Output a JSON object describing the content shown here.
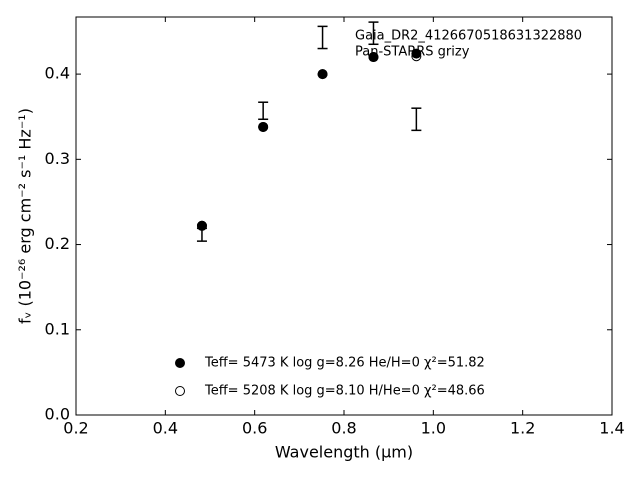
{
  "chart_data": {
    "type": "scatter",
    "xlabel": "Wavelength (μm)",
    "ylabel": "fᵥ (10⁻²⁶ erg cm⁻² s⁻¹ Hz⁻¹)",
    "annotations": [
      "Gaia_DR2_4126670518631322880",
      "Pan-STARRS grizy"
    ],
    "xlim": [
      0.2,
      1.4
    ],
    "xticks": [
      0.2,
      0.4,
      0.6,
      0.8,
      {
        "value": 1,
        "label": "1.0"
      },
      1.2,
      1.4
    ],
    "ylim": [
      0,
      0.467
    ],
    "yticks": [
      {
        "value": 0,
        "label": "0.0"
      },
      0.1,
      0.2,
      0.3,
      0.4
    ],
    "observed": {
      "x": [
        0.482,
        0.619,
        0.752,
        0.866,
        0.962
      ],
      "values": [
        0.2115,
        0.357,
        0.443,
        0.448,
        0.347
      ],
      "errors": [
        0.0075,
        0.01,
        0.013,
        0.013,
        0.013
      ],
      "color": "#000000"
    },
    "series": [
      {
        "name": "Teff=  5473 K  log g=8.26  He/H=0  χ²=51.82",
        "marker": "filled",
        "color": "#000000",
        "x": [
          0.482,
          0.619,
          0.752,
          0.866,
          0.962
        ],
        "values": [
          0.222,
          0.338,
          0.4,
          0.42,
          0.424
        ]
      },
      {
        "name": "Teff=  5208 K  log g=8.10  H/He=0  χ²=48.66",
        "marker": "open",
        "color": "#000000",
        "x": [
          0.482,
          0.619,
          0.752,
          0.866,
          0.962
        ],
        "values": [
          0.222,
          0.338,
          0.4,
          0.42,
          0.421
        ]
      }
    ]
  }
}
